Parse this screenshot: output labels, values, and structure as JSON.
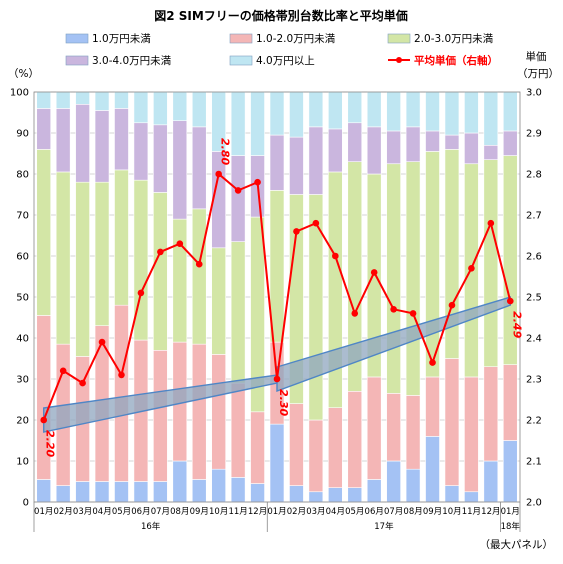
{
  "colors": {
    "lt1": "#a4c2f4",
    "s1_2": "#f4b6b6",
    "s2_3": "#d3e6a6",
    "s3_4": "#cab6de",
    "ge4": "#bfe6f2",
    "line": "#ff0000",
    "band_fill": "#8fa6bf",
    "band_stroke": "#4f86c6",
    "grid": "#c8c8c8"
  },
  "chart_data": {
    "type": "bar",
    "stacked": true,
    "percent_stacked": true,
    "title": "図2 SIMフリーの価格帯別台数比率と平均単価",
    "left_axis_unit": "（%）",
    "right_axis_title": "単価",
    "right_axis_unit": "（万円）",
    "panel_note": "（最大パネル）",
    "ylim": [
      0,
      100
    ],
    "y2lim": [
      2.0,
      3.0
    ],
    "yticks": [
      "0",
      "10",
      "20",
      "30",
      "40",
      "50",
      "60",
      "70",
      "80",
      "90",
      "100"
    ],
    "y2ticks": [
      "2.0",
      "2.1",
      "2.2",
      "2.3",
      "2.4",
      "2.5",
      "2.6",
      "2.7",
      "2.8",
      "2.9",
      "3.0"
    ],
    "categories": [
      "01月",
      "02月",
      "03月",
      "04月",
      "05月",
      "06月",
      "07月",
      "08月",
      "09月",
      "10月",
      "11月",
      "12月",
      "01月",
      "02月",
      "03月",
      "04月",
      "05月",
      "06月",
      "07月",
      "08月",
      "09月",
      "10月",
      "11月",
      "12月",
      "01月"
    ],
    "year_labels": [
      {
        "label": "16年",
        "start": 0,
        "end": 11
      },
      {
        "label": "17年",
        "start": 12,
        "end": 23
      },
      {
        "label": "18年",
        "start": 24,
        "end": 24
      }
    ],
    "series": [
      {
        "name": "1.0万円未満",
        "color_key": "lt1",
        "values": [
          5.5,
          4,
          5,
          5,
          5,
          5,
          5,
          10,
          5.5,
          8,
          6,
          4.5,
          19,
          4,
          2.5,
          3.5,
          3.5,
          5.5,
          10,
          8,
          16,
          4,
          2.5,
          10,
          15
        ]
      },
      {
        "name": "1.0-2.0万円未満",
        "color_key": "s1_2",
        "values": [
          40,
          34.5,
          30.5,
          38,
          43,
          34.5,
          32,
          29,
          33,
          28,
          23,
          17.5,
          20,
          20,
          17.5,
          19.5,
          23.5,
          25,
          16.5,
          18,
          14.5,
          31,
          28,
          23,
          18.5
        ]
      },
      {
        "name": "2.0-3.0万円未満",
        "color_key": "s2_3",
        "values": [
          40.5,
          42,
          42.5,
          35,
          33,
          39,
          38.5,
          30,
          33,
          26,
          34.5,
          47.5,
          37,
          51,
          55,
          57.5,
          56,
          49.5,
          56,
          57,
          55,
          51,
          52,
          50.5,
          51
        ]
      },
      {
        "name": "3.0-4.0万円未満",
        "color_key": "s3_4",
        "values": [
          10,
          15.5,
          19,
          17.5,
          15,
          14,
          16.5,
          24,
          20,
          23.5,
          21,
          15,
          13.5,
          14,
          16.5,
          10.5,
          9.5,
          11.5,
          8,
          8.5,
          5,
          3.5,
          7.5,
          3.5,
          6
        ]
      },
      {
        "name": "4.0万円以上",
        "color_key": "ge4",
        "values": [
          4,
          4,
          3,
          4.5,
          4,
          7.5,
          8,
          7,
          8.5,
          14.5,
          15.5,
          15.5,
          10.5,
          11,
          8.5,
          9,
          7.5,
          8.5,
          9.5,
          8.5,
          9.5,
          10.5,
          10,
          13,
          9.5
        ]
      }
    ],
    "line_series": {
      "name": "平均単価（右軸）",
      "axis": "right",
      "values": [
        2.2,
        2.32,
        2.29,
        2.39,
        2.31,
        2.51,
        2.61,
        2.63,
        2.58,
        2.8,
        2.76,
        2.78,
        2.3,
        2.66,
        2.68,
        2.6,
        2.46,
        2.56,
        2.47,
        2.46,
        2.34,
        2.48,
        2.57,
        2.68,
        2.49
      ]
    },
    "annotations": [
      {
        "text": "2.20",
        "index": 0
      },
      {
        "text": "2.80",
        "index": 9
      },
      {
        "text": "2.30",
        "index": 12
      },
      {
        "text": "2.49",
        "index": 24
      }
    ],
    "grid": true,
    "legend_position": "top"
  }
}
